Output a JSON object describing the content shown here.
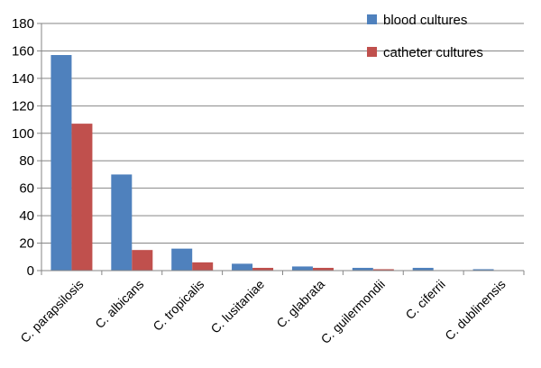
{
  "chart_data": {
    "type": "bar",
    "title": "",
    "xlabel": "",
    "ylabel": "",
    "ylim": [
      0,
      180
    ],
    "yticks": [
      0,
      20,
      40,
      60,
      80,
      100,
      120,
      140,
      160,
      180
    ],
    "grid": true,
    "legend_position": "top-right",
    "categories": [
      "C. parapsilosis",
      "C. albicans",
      "C. tropicalis",
      "C. lusitaniae",
      "C. glabrata",
      "C. guilermondii",
      "C. ciferrii",
      "C. dublinensis"
    ],
    "series": [
      {
        "name": "blood cultures",
        "color": "#4F81BD",
        "values": [
          157,
          70,
          16,
          5,
          3,
          2,
          2,
          1
        ]
      },
      {
        "name": "catheter cultures",
        "color": "#C0504D",
        "values": [
          107,
          15,
          6,
          2,
          2,
          1,
          0,
          0
        ]
      }
    ]
  }
}
